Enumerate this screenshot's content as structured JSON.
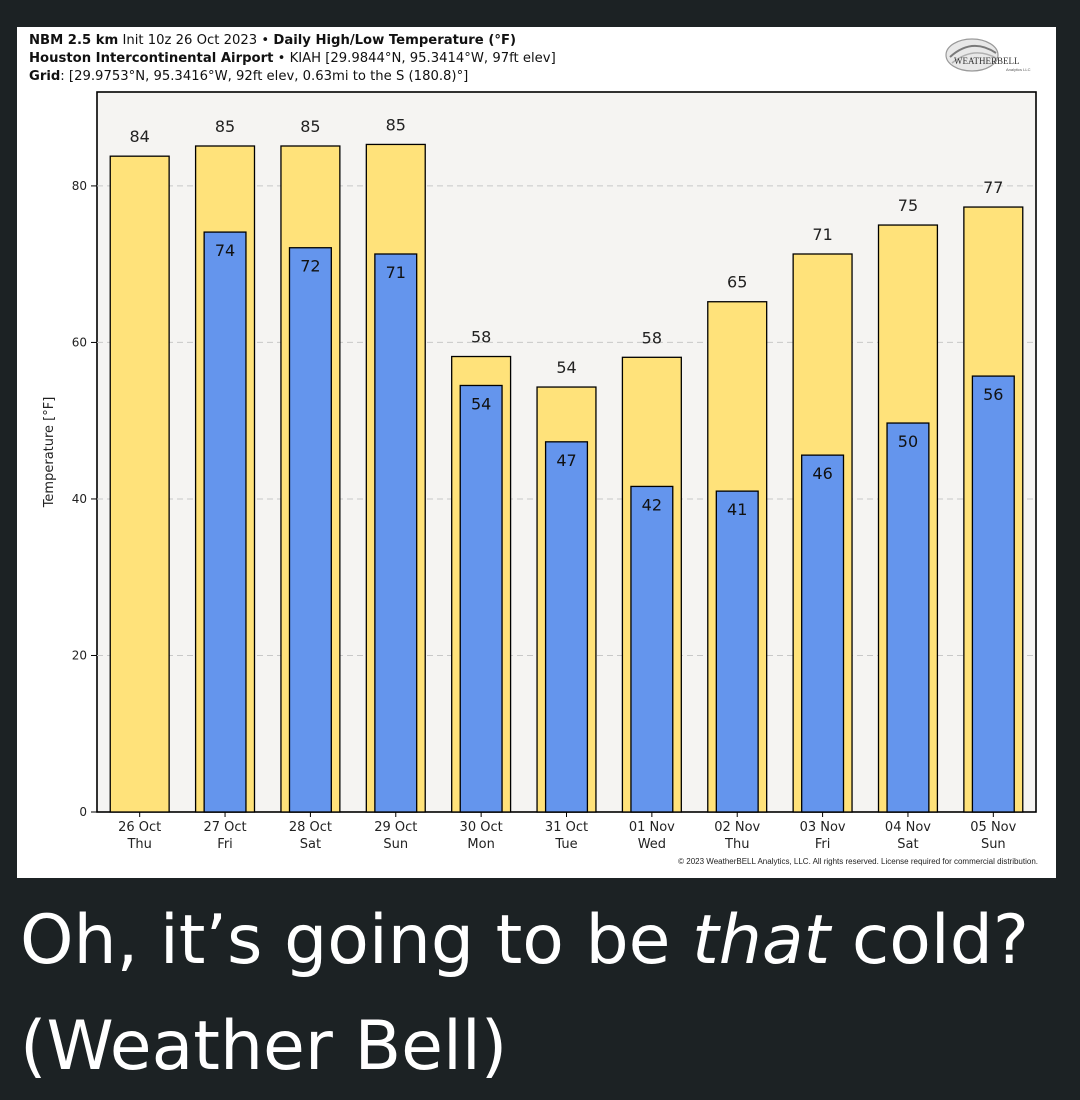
{
  "header": {
    "model": "NBM 2.5 km",
    "init": "Init 10z 26 Oct 2023",
    "bullet": "•",
    "product": "Daily High/Low Temperature (°F)",
    "station_name": "Houston Intercontinental Airport",
    "station_info": "KIAH [29.9844°N, 95.3414°W, 97ft elev]",
    "grid_label": "Grid",
    "grid_info": ": [29.9753°N, 95.3416°W, 92ft elev, 0.63mi to the S (180.8)°]"
  },
  "logo": {
    "text": "WEATHERBELL",
    "sub": "Analytics LLC"
  },
  "copyright": "© 2023 WeatherBELL Analytics, LLC. All rights reserved. License required for commercial distribution.",
  "caption": {
    "part1": "Oh, it’s going to be ",
    "emphasis": "that",
    "part2": " cold? (Weather Bell)"
  },
  "colors": {
    "high": "#ffe27a",
    "low": "#6495ed",
    "plot_bg": "#f5f4f2",
    "page_bg": "#1c2224"
  },
  "chart_data": {
    "type": "bar",
    "ylabel": "Temperature [°F]",
    "ylim": [
      0,
      92
    ],
    "yticks": [
      0,
      20,
      40,
      60,
      80
    ],
    "grid": "horizontal dashed",
    "categories": [
      [
        "26 Oct",
        "Thu"
      ],
      [
        "27 Oct",
        "Fri"
      ],
      [
        "28 Oct",
        "Sat"
      ],
      [
        "29 Oct",
        "Sun"
      ],
      [
        "30 Oct",
        "Mon"
      ],
      [
        "31 Oct",
        "Tue"
      ],
      [
        "01 Nov",
        "Wed"
      ],
      [
        "02 Nov",
        "Thu"
      ],
      [
        "03 Nov",
        "Fri"
      ],
      [
        "04 Nov",
        "Sat"
      ],
      [
        "05 Nov",
        "Sun"
      ]
    ],
    "series": [
      {
        "key": "high",
        "values": [
          84,
          85,
          85,
          85,
          58,
          54,
          58,
          65,
          71,
          75,
          77
        ],
        "bar_values": [
          83.8,
          85.1,
          85.1,
          85.3,
          58.2,
          54.3,
          58.1,
          65.2,
          71.3,
          75.0,
          77.3
        ]
      },
      {
        "key": "low",
        "values": [
          null,
          74,
          72,
          71,
          54,
          47,
          42,
          41,
          46,
          50,
          56
        ],
        "bar_values": [
          null,
          74.1,
          72.1,
          71.3,
          54.5,
          47.3,
          41.6,
          41.0,
          45.6,
          49.7,
          55.7
        ]
      }
    ]
  }
}
